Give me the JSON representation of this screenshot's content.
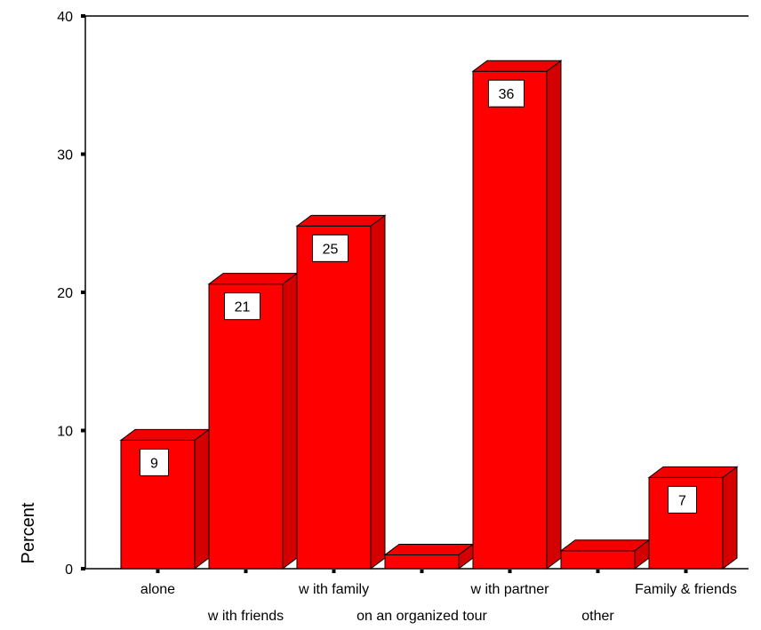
{
  "chart_data": {
    "type": "bar",
    "style": "3d",
    "ylabel": "Percent",
    "xlabel": "",
    "ylim": [
      0,
      40
    ],
    "yticks": [
      0,
      10,
      20,
      30,
      40
    ],
    "grid": false,
    "categories": [
      "alone",
      "w ith friends",
      "w ith family",
      "on an organized tour",
      "w ith partner",
      "other",
      "Family & friends"
    ],
    "values": [
      9.3,
      20.6,
      24.8,
      1.0,
      36.0,
      1.3,
      6.6
    ],
    "data_labels": [
      "9",
      "21",
      "25",
      "",
      "36",
      "",
      "7"
    ],
    "colors": {
      "bar_front": "#ff0000",
      "bar_top": "#f20000",
      "bar_side": "#d40000",
      "outline": "#000000"
    }
  }
}
